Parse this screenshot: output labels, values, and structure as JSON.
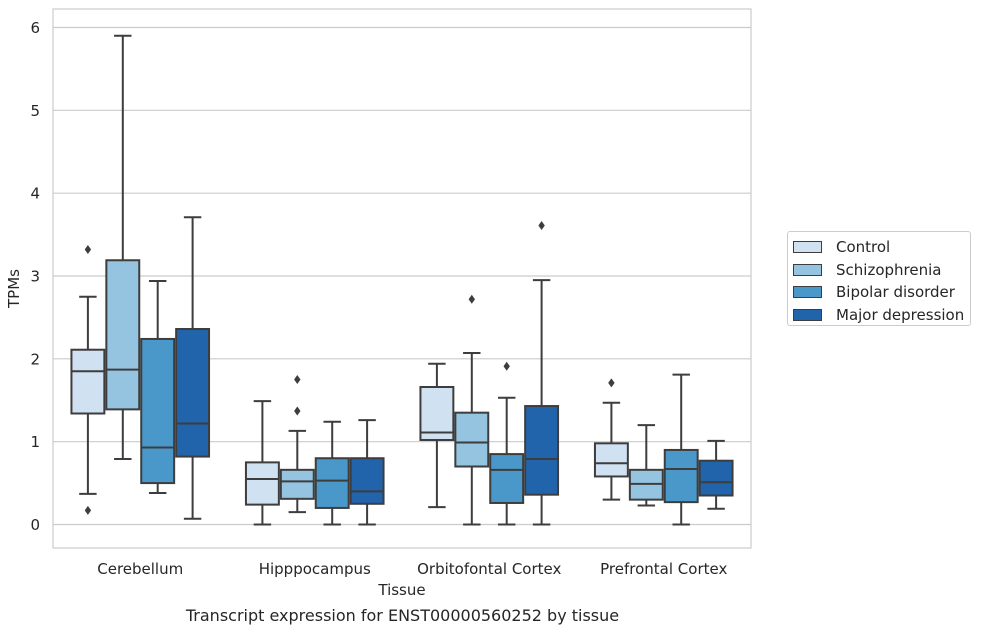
{
  "chart_data": {
    "type": "boxplot",
    "xlabel": "Tissue",
    "ylabel": "TPMs",
    "ylim": [
      -0.28,
      6.22
    ],
    "yticks": [
      0,
      1,
      2,
      3,
      4,
      5,
      6
    ],
    "grid": true,
    "legend_position": "right",
    "categories": [
      "Cerebellum",
      "Hipppocampus",
      "Orbitofontal Cortex",
      "Prefrontal Cortex"
    ],
    "series": [
      {
        "name": "Control",
        "color": "#d0e1f2",
        "boxes": [
          {
            "whislo": 0.37,
            "q1": 1.34,
            "med": 1.85,
            "q3": 2.11,
            "whishi": 2.75,
            "fliers": [
              3.32,
              0.17
            ]
          },
          {
            "whislo": 0.0,
            "q1": 0.24,
            "med": 0.55,
            "q3": 0.75,
            "whishi": 1.49,
            "fliers": []
          },
          {
            "whislo": 0.21,
            "q1": 1.02,
            "med": 1.11,
            "q3": 1.66,
            "whishi": 1.94,
            "fliers": []
          },
          {
            "whislo": 0.3,
            "q1": 0.58,
            "med": 0.74,
            "q3": 0.98,
            "whishi": 1.47,
            "fliers": [
              1.71
            ]
          }
        ]
      },
      {
        "name": "Schizophrenia",
        "color": "#94c4df",
        "boxes": [
          {
            "whislo": 0.79,
            "q1": 1.39,
            "med": 1.87,
            "q3": 3.19,
            "whishi": 5.9,
            "fliers": []
          },
          {
            "whislo": 0.15,
            "q1": 0.31,
            "med": 0.52,
            "q3": 0.66,
            "whishi": 1.13,
            "fliers": [
              1.75,
              1.37
            ]
          },
          {
            "whislo": 0.0,
            "q1": 0.7,
            "med": 0.99,
            "q3": 1.35,
            "whishi": 2.07,
            "fliers": [
              2.72
            ]
          },
          {
            "whislo": 0.23,
            "q1": 0.3,
            "med": 0.49,
            "q3": 0.66,
            "whishi": 1.2,
            "fliers": []
          }
        ]
      },
      {
        "name": "Bipolar disorder",
        "color": "#4a98c9",
        "boxes": [
          {
            "whislo": 0.38,
            "q1": 0.5,
            "med": 0.93,
            "q3": 2.24,
            "whishi": 2.94,
            "fliers": []
          },
          {
            "whislo": 0.0,
            "q1": 0.2,
            "med": 0.53,
            "q3": 0.8,
            "whishi": 1.24,
            "fliers": []
          },
          {
            "whislo": 0.0,
            "q1": 0.26,
            "med": 0.66,
            "q3": 0.85,
            "whishi": 1.53,
            "fliers": [
              1.91
            ]
          },
          {
            "whislo": 0.0,
            "q1": 0.27,
            "med": 0.67,
            "q3": 0.9,
            "whishi": 1.81,
            "fliers": []
          }
        ]
      },
      {
        "name": "Major depression",
        "color": "#2164ab",
        "boxes": [
          {
            "whislo": 0.07,
            "q1": 0.82,
            "med": 1.22,
            "q3": 2.36,
            "whishi": 3.71,
            "fliers": []
          },
          {
            "whislo": 0.0,
            "q1": 0.25,
            "med": 0.4,
            "q3": 0.8,
            "whishi": 1.26,
            "fliers": []
          },
          {
            "whislo": 0.0,
            "q1": 0.36,
            "med": 0.79,
            "q3": 1.43,
            "whishi": 2.95,
            "fliers": [
              3.61
            ]
          },
          {
            "whislo": 0.19,
            "q1": 0.35,
            "med": 0.51,
            "q3": 0.77,
            "whishi": 1.01,
            "fliers": []
          }
        ]
      }
    ],
    "caption": "Transcript expression for ENST00000560252 by tissue"
  }
}
